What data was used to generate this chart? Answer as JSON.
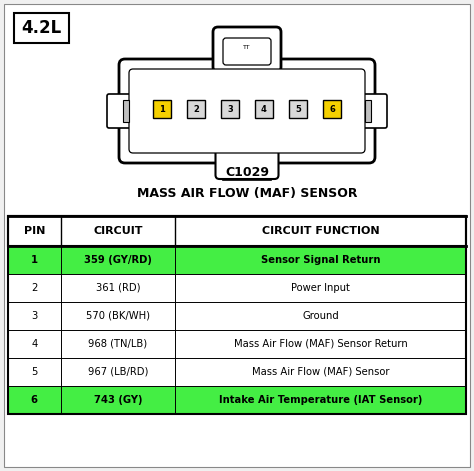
{
  "background_color": "#f0f0f0",
  "label_42L": "4.2L",
  "connector_title": "C1029",
  "connector_subtitle": "MASS AIR FLOW (MAF) SENSOR",
  "table_headers": [
    "PIN",
    "CIRCUIT",
    "CIRCUIT FUNCTION"
  ],
  "table_rows": [
    [
      "1",
      "359 (GY/RD)",
      "Sensor Signal Return"
    ],
    [
      "2",
      "361 (RD)",
      "Power Input"
    ],
    [
      "3",
      "570 (BK/WH)",
      "Ground"
    ],
    [
      "4",
      "968 (TN/LB)",
      "Mass Air Flow (MAF) Sensor Return"
    ],
    [
      "5",
      "967 (LB/RD)",
      "Mass Air Flow (MAF) Sensor"
    ],
    [
      "6",
      "743 (GY)",
      "Intake Air Temperature (IAT Sensor)"
    ]
  ],
  "highlighted_rows": [
    0,
    5
  ],
  "highlight_color": "#44ee44",
  "pin_colors": [
    "#f5d000",
    "#d8d8d8",
    "#d8d8d8",
    "#d8d8d8",
    "#d8d8d8",
    "#f5d000"
  ],
  "border_color": "#000000",
  "text_color": "#000000"
}
